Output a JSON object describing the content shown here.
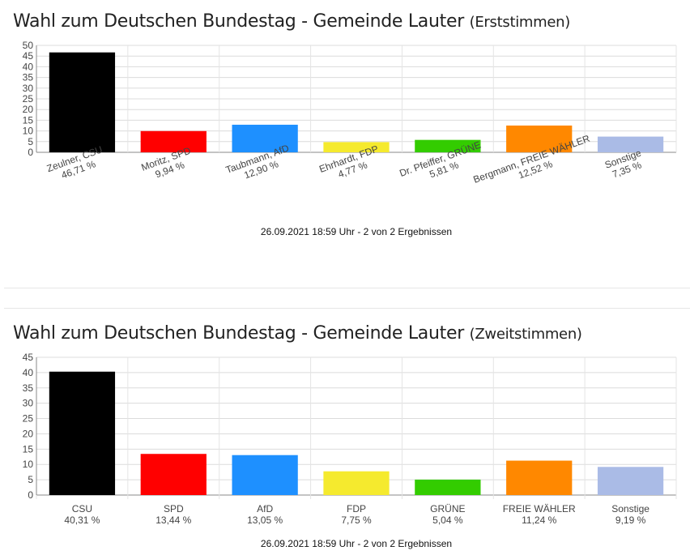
{
  "charts": [
    {
      "title_main": "Wahl zum Deutschen Bundestag - Gemeinde Lauter",
      "title_sub": "(Erststimmen)",
      "footer": "26.09.2021 18:59 Uhr - 2 von 2 Ergebnissen"
    },
    {
      "title_main": "Wahl zum Deutschen Bundestag - Gemeinde Lauter",
      "title_sub": "(Zweitstimmen)",
      "footer": "26.09.2021 18:59 Uhr - 2 von 2 Ergebnissen"
    }
  ],
  "chart_data": [
    {
      "type": "bar",
      "title": "Wahl zum Deutschen Bundestag - Gemeinde Lauter (Erststimmen)",
      "categories": [
        "Zeulner, CSU",
        "Moritz, SPD",
        "Taubmann, AfD",
        "Ehrhardt, FDP",
        "Dr. Pfeiffer, GRÜNE",
        "Bergmann, FREIE WÄHLER",
        "Sonstige"
      ],
      "value_labels": [
        "46,71 %",
        "9,94 %",
        "12,90 %",
        "4,77 %",
        "5,81 %",
        "12,52 %",
        "7,35 %"
      ],
      "values": [
        46.71,
        9.94,
        12.9,
        4.77,
        5.81,
        12.52,
        7.35
      ],
      "colors": [
        "#000000",
        "#ff0000",
        "#1e90ff",
        "#f5ea2e",
        "#33cc00",
        "#ff8800",
        "#aabbe6"
      ],
      "ylim": [
        0,
        50
      ],
      "yticks": [
        0,
        5,
        10,
        15,
        20,
        25,
        30,
        35,
        40,
        45,
        50
      ],
      "grid": true,
      "rotated_labels": true
    },
    {
      "type": "bar",
      "title": "Wahl zum Deutschen Bundestag - Gemeinde Lauter (Zweitstimmen)",
      "categories": [
        "CSU",
        "SPD",
        "AfD",
        "FDP",
        "GRÜNE",
        "FREIE WÄHLER",
        "Sonstige"
      ],
      "value_labels": [
        "40,31 %",
        "13,44 %",
        "13,05 %",
        "7,75 %",
        "5,04 %",
        "11,24 %",
        "9,19 %"
      ],
      "values": [
        40.31,
        13.44,
        13.05,
        7.75,
        5.04,
        11.24,
        9.19
      ],
      "colors": [
        "#000000",
        "#ff0000",
        "#1e90ff",
        "#f5ea2e",
        "#33cc00",
        "#ff8800",
        "#aabbe6"
      ],
      "ylim": [
        0,
        45
      ],
      "yticks": [
        0,
        5,
        10,
        15,
        20,
        25,
        30,
        35,
        40,
        45
      ],
      "grid": true,
      "rotated_labels": false
    }
  ]
}
